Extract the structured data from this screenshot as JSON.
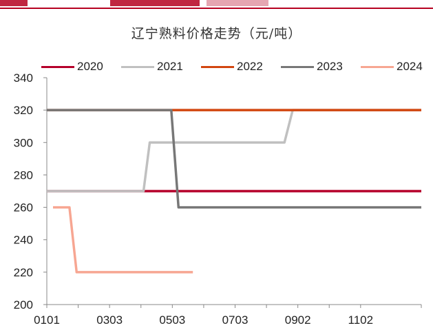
{
  "page": {
    "accent_color": "#b5001f"
  },
  "chart_data": {
    "type": "line",
    "title": "辽宁熟料价格走势（元/吨）",
    "xlabel": "",
    "ylabel": "",
    "x_ticks": [
      "0101",
      "0303",
      "0503",
      "0703",
      "0902",
      "1102"
    ],
    "ylim": [
      200,
      340
    ],
    "y_ticks": [
      200,
      220,
      240,
      260,
      280,
      300,
      320,
      340
    ],
    "grid": false,
    "legend_position": "top",
    "series": [
      {
        "name": "2020",
        "color": "#b5002a",
        "points": [
          [
            "0101",
            270
          ],
          [
            "0510",
            270
          ],
          [
            "1231",
            270
          ]
        ]
      },
      {
        "name": "2021",
        "color": "#c0c0c0",
        "points": [
          [
            "0101",
            270
          ],
          [
            "0405",
            270
          ],
          [
            "0411",
            300
          ],
          [
            "0820",
            300
          ],
          [
            "0828",
            320
          ],
          [
            "1231",
            320
          ]
        ]
      },
      {
        "name": "2022",
        "color": "#d2460f",
        "points": [
          [
            "0101",
            320
          ],
          [
            "0501",
            320
          ],
          [
            "1231",
            320
          ]
        ]
      },
      {
        "name": "2023",
        "color": "#777777",
        "points": [
          [
            "0101",
            320
          ],
          [
            "0502",
            320
          ],
          [
            "0509",
            260
          ],
          [
            "1231",
            260
          ]
        ]
      },
      {
        "name": "2024",
        "color": "#f7a692",
        "points": [
          [
            "0107",
            260
          ],
          [
            "0123",
            260
          ],
          [
            "0130",
            220
          ],
          [
            "0523",
            220
          ]
        ]
      }
    ]
  }
}
